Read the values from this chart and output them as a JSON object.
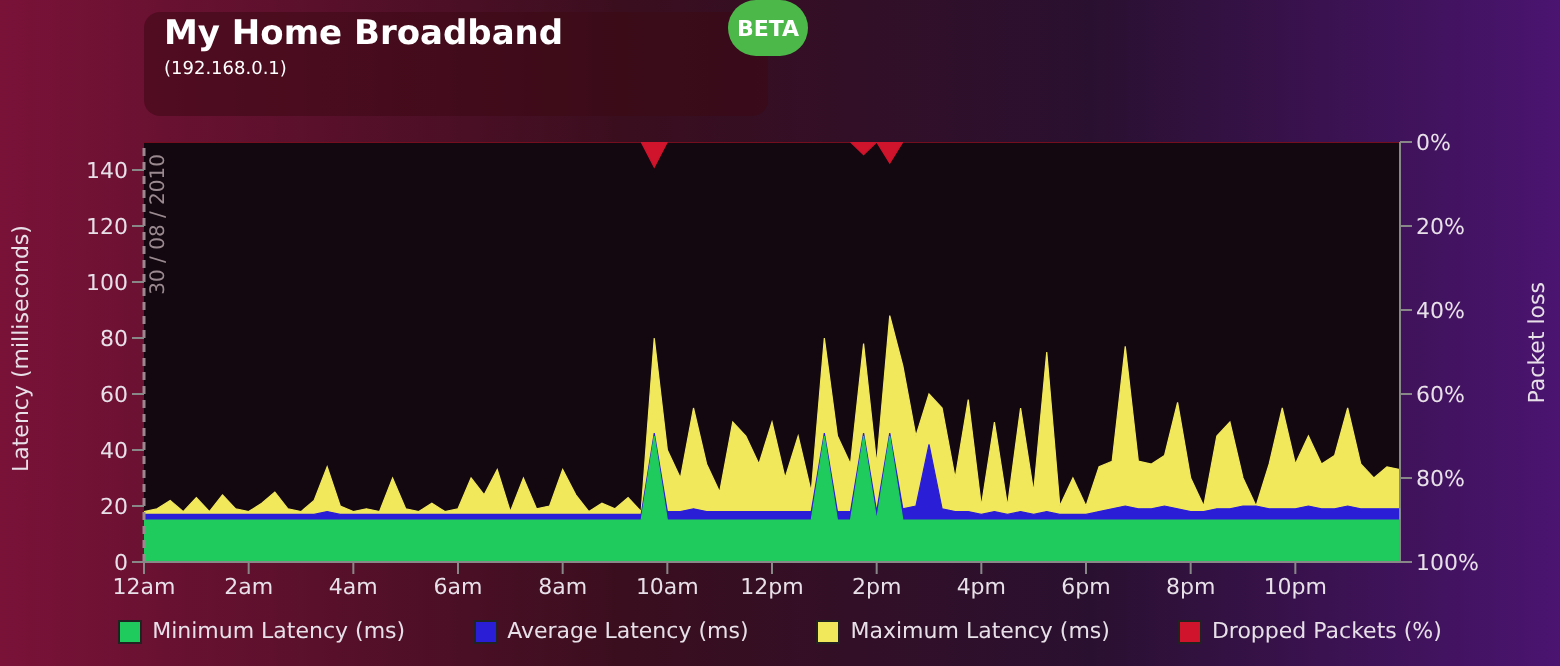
{
  "chart_data": {
    "type": "area",
    "title": "My Home Broadband",
    "subtitle": "(192.168.0.1)",
    "annotations": [
      "BETA"
    ],
    "ylabel": "Latency (milliseconds)",
    "y2label": "Packet loss",
    "xlim": [
      "2010-08-30T00:00",
      "2010-08-31T00:00"
    ],
    "xticks": [
      {
        "value": "2010-08-30T00:00",
        "label": "12am"
      },
      {
        "value": "2010-08-30T02:00",
        "label": "2am"
      },
      {
        "value": "2010-08-30T04:00",
        "label": "4am"
      },
      {
        "value": "2010-08-30T06:00",
        "label": "6am"
      },
      {
        "value": "2010-08-30T08:00",
        "label": "8am"
      },
      {
        "value": "2010-08-30T10:00",
        "label": "10am"
      },
      {
        "value": "2010-08-30T12:00",
        "label": "12pm"
      },
      {
        "value": "2010-08-30T14:00",
        "label": "2pm"
      },
      {
        "value": "2010-08-30T16:00",
        "label": "4pm"
      },
      {
        "value": "2010-08-30T18:00",
        "label": "6pm"
      },
      {
        "value": "2010-08-30T20:00",
        "label": "8pm"
      },
      {
        "value": "2010-08-30T22:00",
        "label": "10pm"
      }
    ],
    "ylim": [
      0,
      150
    ],
    "yticks": [
      0,
      20,
      40,
      60,
      80,
      100,
      120,
      140
    ],
    "y2lim": [
      100,
      0
    ],
    "y2ticks": [
      {
        "value": 0,
        "label": "0%"
      },
      {
        "value": 20,
        "label": "20%"
      },
      {
        "value": 40,
        "label": "40%"
      },
      {
        "value": 60,
        "label": "60%"
      },
      {
        "value": 80,
        "label": "80%"
      },
      {
        "value": 100,
        "label": "100%"
      }
    ],
    "x": [
      "2010-08-30T00:00",
      "2010-08-30T00:15",
      "2010-08-30T00:30",
      "2010-08-30T00:45",
      "2010-08-30T01:00",
      "2010-08-30T01:15",
      "2010-08-30T01:30",
      "2010-08-30T01:45",
      "2010-08-30T02:00",
      "2010-08-30T02:15",
      "2010-08-30T02:30",
      "2010-08-30T02:45",
      "2010-08-30T03:00",
      "2010-08-30T03:15",
      "2010-08-30T03:30",
      "2010-08-30T03:45",
      "2010-08-30T04:00",
      "2010-08-30T04:15",
      "2010-08-30T04:30",
      "2010-08-30T04:45",
      "2010-08-30T05:00",
      "2010-08-30T05:15",
      "2010-08-30T05:30",
      "2010-08-30T05:45",
      "2010-08-30T06:00",
      "2010-08-30T06:15",
      "2010-08-30T06:30",
      "2010-08-30T06:45",
      "2010-08-30T07:00",
      "2010-08-30T07:15",
      "2010-08-30T07:30",
      "2010-08-30T07:45",
      "2010-08-30T08:00",
      "2010-08-30T08:15",
      "2010-08-30T08:30",
      "2010-08-30T08:45",
      "2010-08-30T09:00",
      "2010-08-30T09:15",
      "2010-08-30T09:30",
      "2010-08-30T09:45",
      "2010-08-30T10:00",
      "2010-08-30T10:15",
      "2010-08-30T10:30",
      "2010-08-30T10:45",
      "2010-08-30T11:00",
      "2010-08-30T11:15",
      "2010-08-30T11:30",
      "2010-08-30T11:45",
      "2010-08-30T12:00",
      "2010-08-30T12:15",
      "2010-08-30T12:30",
      "2010-08-30T12:45",
      "2010-08-30T13:00",
      "2010-08-30T13:15",
      "2010-08-30T13:30",
      "2010-08-30T13:45",
      "2010-08-30T14:00",
      "2010-08-30T14:15",
      "2010-08-30T14:30",
      "2010-08-30T14:45",
      "2010-08-30T15:00",
      "2010-08-30T15:15",
      "2010-08-30T15:30",
      "2010-08-30T15:45",
      "2010-08-30T16:00",
      "2010-08-30T16:15",
      "2010-08-30T16:30",
      "2010-08-30T16:45",
      "2010-08-30T17:00",
      "2010-08-30T17:15",
      "2010-08-30T17:30",
      "2010-08-30T17:45",
      "2010-08-30T18:00",
      "2010-08-30T18:15",
      "2010-08-30T18:30",
      "2010-08-30T18:45",
      "2010-08-30T19:00",
      "2010-08-30T19:15",
      "2010-08-30T19:30",
      "2010-08-30T19:45",
      "2010-08-30T20:00",
      "2010-08-30T20:15",
      "2010-08-30T20:30",
      "2010-08-30T20:45",
      "2010-08-30T21:00",
      "2010-08-30T21:15",
      "2010-08-30T21:30",
      "2010-08-30T21:45",
      "2010-08-30T22:00",
      "2010-08-30T22:15",
      "2010-08-30T22:30",
      "2010-08-30T22:45",
      "2010-08-30T23:00",
      "2010-08-30T23:15",
      "2010-08-30T23:30",
      "2010-08-30T23:45",
      "2010-08-31T00:00"
    ],
    "series": [
      {
        "name": "Minimum Latency (ms)",
        "color": "#1ecb5c",
        "values": [
          15,
          15,
          15,
          15,
          15,
          15,
          15,
          15,
          15,
          15,
          15,
          15,
          15,
          15,
          15,
          15,
          15,
          15,
          15,
          15,
          15,
          15,
          15,
          15,
          15,
          15,
          15,
          15,
          15,
          15,
          15,
          15,
          15,
          15,
          15,
          15,
          15,
          15,
          15,
          45,
          15,
          15,
          15,
          15,
          15,
          15,
          15,
          15,
          15,
          15,
          15,
          15,
          45,
          15,
          15,
          45,
          15,
          45,
          15,
          15,
          15,
          15,
          15,
          15,
          15,
          15,
          15,
          15,
          15,
          15,
          15,
          15,
          15,
          15,
          15,
          15,
          15,
          15,
          15,
          15,
          15,
          15,
          15,
          15,
          15,
          15,
          15,
          15,
          15,
          15,
          15,
          15,
          15,
          15,
          15,
          15,
          15
        ]
      },
      {
        "name": "Average Latency (ms)",
        "color": "#2a1fd6",
        "values": [
          17,
          17,
          17,
          17,
          17,
          17,
          17,
          17,
          17,
          17,
          17,
          17,
          17,
          17,
          18,
          17,
          17,
          17,
          17,
          17,
          17,
          17,
          17,
          17,
          17,
          17,
          17,
          17,
          17,
          17,
          17,
          17,
          17,
          17,
          17,
          17,
          17,
          17,
          17,
          46,
          18,
          18,
          19,
          18,
          18,
          18,
          18,
          18,
          18,
          18,
          18,
          18,
          46,
          18,
          18,
          46,
          18,
          46,
          19,
          20,
          42,
          19,
          18,
          18,
          17,
          18,
          17,
          18,
          17,
          18,
          17,
          17,
          17,
          18,
          19,
          20,
          19,
          19,
          20,
          19,
          18,
          18,
          19,
          19,
          20,
          20,
          19,
          19,
          19,
          20,
          19,
          19,
          20,
          19,
          19,
          19,
          19
        ]
      },
      {
        "name": "Maximum Latency (ms)",
        "color": "#f2e85c",
        "values": [
          18,
          19,
          22,
          18,
          23,
          18,
          24,
          19,
          18,
          21,
          25,
          19,
          18,
          22,
          34,
          20,
          18,
          19,
          18,
          30,
          19,
          18,
          21,
          18,
          19,
          30,
          24,
          33,
          18,
          30,
          19,
          20,
          33,
          24,
          18,
          21,
          19,
          23,
          18,
          80,
          40,
          30,
          55,
          35,
          25,
          50,
          45,
          35,
          50,
          30,
          45,
          25,
          80,
          45,
          35,
          78,
          35,
          88,
          70,
          45,
          60,
          55,
          30,
          58,
          20,
          50,
          20,
          55,
          25,
          75,
          20,
          30,
          20,
          34,
          36,
          77,
          36,
          35,
          38,
          57,
          30,
          20,
          45,
          50,
          30,
          20,
          35,
          55,
          35,
          45,
          35,
          38,
          55,
          35,
          30,
          34,
          33
        ]
      },
      {
        "name": "Dropped Packets (%)",
        "color": "#d0142c",
        "axis": "y2",
        "values": [
          0,
          0,
          0,
          0,
          0,
          0,
          0,
          0,
          0,
          0,
          0,
          0,
          0,
          0,
          0,
          0,
          0,
          0,
          0,
          0,
          0,
          0,
          0,
          0,
          0,
          0,
          0,
          0,
          0,
          0,
          0,
          0,
          0,
          0,
          0,
          0,
          0,
          0,
          0,
          6,
          0,
          0,
          0,
          0,
          0,
          0,
          0,
          0,
          0,
          0,
          0,
          0,
          0,
          0,
          0,
          3,
          0,
          5,
          0,
          0,
          0,
          0,
          0,
          0,
          0,
          0,
          0,
          0,
          0,
          0,
          0,
          0,
          0,
          0,
          0,
          0,
          0,
          0,
          0,
          0,
          0,
          0,
          0,
          0,
          0,
          0,
          0,
          0,
          0,
          0,
          0,
          0,
          0,
          0,
          0,
          0,
          0
        ]
      }
    ],
    "ref_lines": [
      {
        "axis": "x",
        "value": "2010-08-30T00:00",
        "label": "30 / 08 / 2010",
        "color": "#9a8a90",
        "line_style": "dashed"
      }
    ],
    "legend": "bottom"
  }
}
